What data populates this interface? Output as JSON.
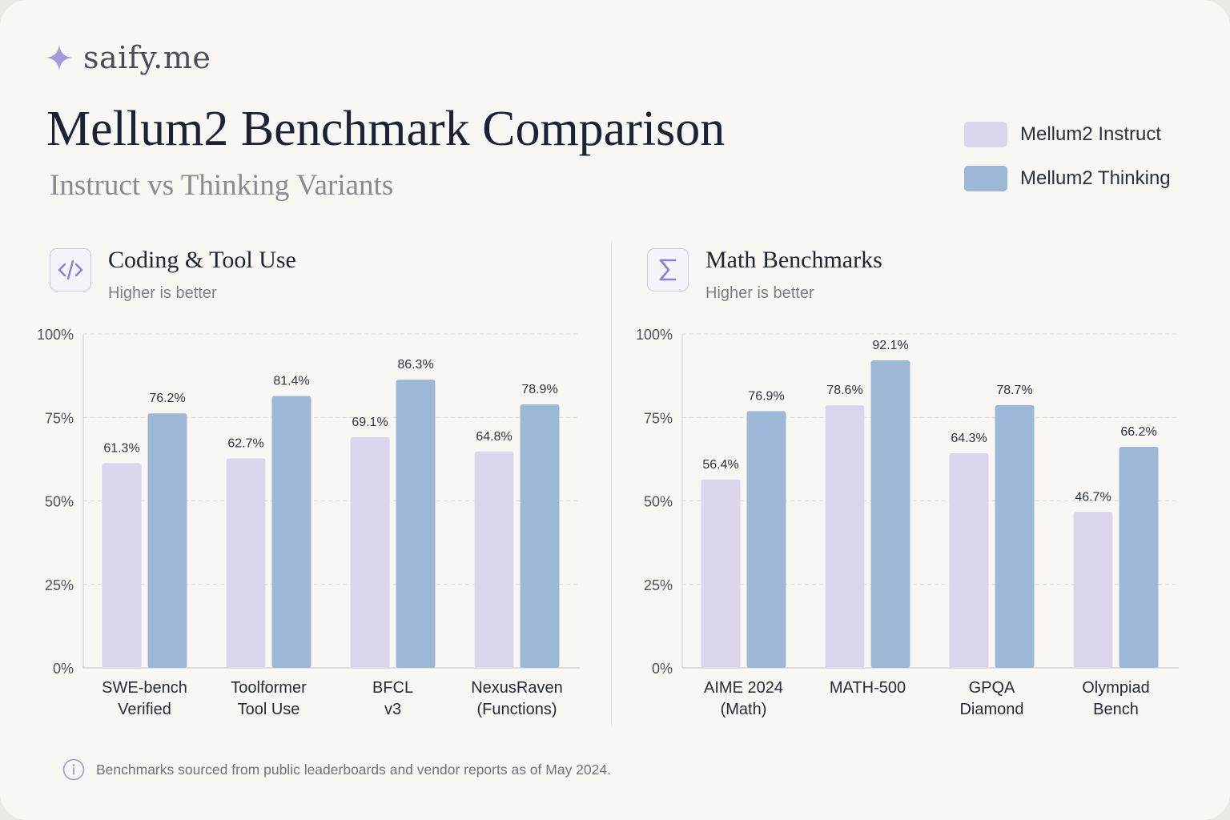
{
  "brand": {
    "name": "saify.me",
    "icon": "sparkle-icon"
  },
  "title": "Mellum2 Benchmark Comparison",
  "subtitle": "Instruct vs Thinking Variants",
  "legend": [
    {
      "label": "Mellum2 Instruct",
      "color": "#ddd5ee"
    },
    {
      "label": "Mellum2 Thinking",
      "color": "#9db8d7"
    }
  ],
  "footnote": {
    "icon": "info-icon",
    "text": "Benchmarks sourced from public leaderboards and vendor reports as of May 2024."
  },
  "colors": {
    "instruct": "#ddd5ee",
    "thinking": "#9db8d7",
    "grid": "#dcd9d6",
    "accent": "#9b8bd6"
  },
  "chart_data": [
    {
      "type": "bar",
      "title": "Coding & Tool Use",
      "subtitle": "Higher is better",
      "icon": "code-icon",
      "categories": [
        [
          "SWE-bench",
          "Verified"
        ],
        [
          "Toolformer",
          "Tool Use"
        ],
        [
          "BFCL",
          "v3"
        ],
        [
          "NexusRaven",
          "(Functions)"
        ]
      ],
      "series": [
        {
          "name": "Mellum2 Instruct",
          "values": [
            61.3,
            62.7,
            69.1,
            64.8
          ]
        },
        {
          "name": "Mellum2 Thinking",
          "values": [
            76.2,
            81.4,
            86.3,
            78.9
          ]
        }
      ],
      "ylim": [
        0,
        100
      ],
      "yticks": [
        "0%",
        "25%",
        "50%",
        "75%",
        "100%"
      ],
      "grid": true
    },
    {
      "type": "bar",
      "title": "Math Benchmarks",
      "subtitle": "Higher is better",
      "icon": "sigma-icon",
      "categories": [
        [
          "AIME 2024",
          "(Math)"
        ],
        [
          "MATH-500"
        ],
        [
          "GPQA",
          "Diamond"
        ],
        [
          "Olympiad",
          "Bench"
        ]
      ],
      "series": [
        {
          "name": "Mellum2 Instruct",
          "values": [
            56.4,
            78.6,
            64.3,
            46.7
          ]
        },
        {
          "name": "Mellum2 Thinking",
          "values": [
            76.9,
            92.1,
            78.7,
            66.2
          ]
        }
      ],
      "ylim": [
        0,
        100
      ],
      "yticks": [
        "0%",
        "25%",
        "50%",
        "75%",
        "100%"
      ],
      "grid": true
    }
  ]
}
